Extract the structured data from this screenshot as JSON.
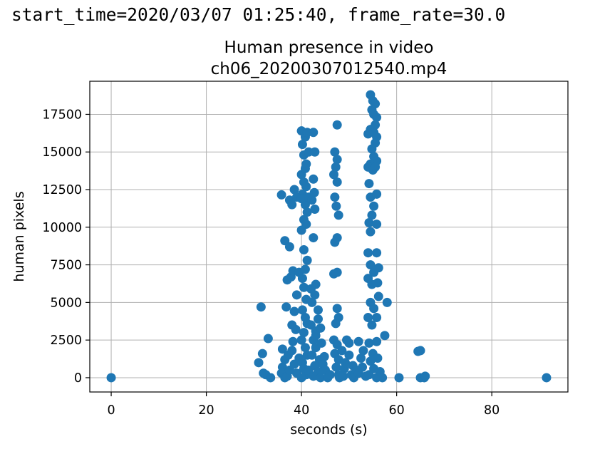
{
  "header": {
    "text": "start_time=2020/03/07 01:25:40, frame_rate=30.0"
  },
  "chart_data": {
    "type": "scatter",
    "title": [
      "Human presence in video",
      "ch06_20200307012540.mp4"
    ],
    "xlabel": "seconds (s)",
    "ylabel": "human pixels",
    "xlim": [
      -4.5,
      96
    ],
    "ylim": [
      -950,
      19700
    ],
    "xticks": [
      0,
      20,
      40,
      60,
      80
    ],
    "yticks": [
      0,
      2500,
      5000,
      7500,
      10000,
      12500,
      15000,
      17500
    ],
    "grid": true,
    "color": "#1f77b4",
    "points": [
      [
        0,
        0
      ],
      [
        91.5,
        0
      ],
      [
        60.5,
        0
      ],
      [
        65,
        0
      ],
      [
        65.8,
        0
      ],
      [
        66,
        100
      ],
      [
        64.5,
        1750
      ],
      [
        65,
        1800
      ],
      [
        31.5,
        4700
      ],
      [
        31,
        1000
      ],
      [
        31.8,
        1600
      ],
      [
        32.5,
        200
      ],
      [
        33,
        2600
      ],
      [
        33.5,
        0
      ],
      [
        32,
        300
      ],
      [
        35.8,
        12150
      ],
      [
        36.5,
        9100
      ],
      [
        37.5,
        8700
      ],
      [
        37,
        6500
      ],
      [
        37.8,
        6700
      ],
      [
        36.8,
        4700
      ],
      [
        38,
        3500
      ],
      [
        38.5,
        4400
      ],
      [
        39,
        5500
      ],
      [
        38.2,
        7100
      ],
      [
        39.5,
        7000
      ],
      [
        37.5,
        11800
      ],
      [
        38.5,
        12500
      ],
      [
        39,
        12000
      ],
      [
        38,
        11500
      ],
      [
        36,
        1900
      ],
      [
        36.5,
        1200
      ],
      [
        36,
        700
      ],
      [
        35.8,
        300
      ],
      [
        36.5,
        0
      ],
      [
        37,
        100
      ],
      [
        37.5,
        500
      ],
      [
        37.2,
        1500
      ],
      [
        38,
        1800
      ],
      [
        38.5,
        900
      ],
      [
        39,
        300
      ],
      [
        39.5,
        1300
      ],
      [
        38.2,
        2400
      ],
      [
        38.8,
        3200
      ],
      [
        40,
        16400
      ],
      [
        40.2,
        15500
      ],
      [
        40.8,
        16000
      ],
      [
        40.5,
        14800
      ],
      [
        41,
        14200
      ],
      [
        40,
        13500
      ],
      [
        40.5,
        13000
      ],
      [
        41,
        12700
      ],
      [
        40.2,
        12200
      ],
      [
        40.8,
        11500
      ],
      [
        41.2,
        11000
      ],
      [
        40.5,
        10500
      ],
      [
        41,
        10200
      ],
      [
        40,
        11900
      ],
      [
        41.5,
        12000
      ],
      [
        40.8,
        13900
      ],
      [
        41.5,
        15000
      ],
      [
        41.2,
        16300
      ],
      [
        40,
        9800
      ],
      [
        40.5,
        8500
      ],
      [
        40.8,
        7200
      ],
      [
        41.2,
        7800
      ],
      [
        40.2,
        6600
      ],
      [
        40.5,
        6000
      ],
      [
        41,
        5200
      ],
      [
        40.2,
        4500
      ],
      [
        40.8,
        4000
      ],
      [
        41.2,
        3600
      ],
      [
        40.5,
        3000
      ],
      [
        40,
        2500
      ],
      [
        40.8,
        2000
      ],
      [
        41.2,
        1500
      ],
      [
        40.2,
        1000
      ],
      [
        40.5,
        600
      ],
      [
        41,
        200
      ],
      [
        40,
        0
      ],
      [
        41.5,
        500
      ],
      [
        42.5,
        16300
      ],
      [
        42.8,
        15000
      ],
      [
        42.5,
        13200
      ],
      [
        42.7,
        12300
      ],
      [
        42.2,
        11800
      ],
      [
        42.8,
        11200
      ],
      [
        42.5,
        9300
      ],
      [
        42,
        5900
      ],
      [
        42.8,
        5500
      ],
      [
        42.2,
        5000
      ],
      [
        43,
        6200
      ],
      [
        43.5,
        4500
      ],
      [
        42,
        3500
      ],
      [
        43,
        3100
      ],
      [
        43.5,
        3900
      ],
      [
        42.5,
        2500
      ],
      [
        43,
        2000
      ],
      [
        42.2,
        1500
      ],
      [
        43.8,
        1200
      ],
      [
        42.8,
        800
      ],
      [
        43.5,
        400
      ],
      [
        42.5,
        100
      ],
      [
        44,
        0
      ],
      [
        43,
        2800
      ],
      [
        44,
        3300
      ],
      [
        44.2,
        2300
      ],
      [
        44.5,
        900
      ],
      [
        45,
        500
      ],
      [
        45.5,
        0
      ],
      [
        46,
        200
      ],
      [
        44.8,
        1400
      ],
      [
        47.5,
        16800
      ],
      [
        47,
        15000
      ],
      [
        47.5,
        14500
      ],
      [
        47.2,
        14000
      ],
      [
        46.8,
        13500
      ],
      [
        47.5,
        13000
      ],
      [
        47,
        12000
      ],
      [
        47.3,
        11400
      ],
      [
        47.8,
        10800
      ],
      [
        47.5,
        9300
      ],
      [
        47,
        9000
      ],
      [
        47.5,
        7000
      ],
      [
        46.8,
        6900
      ],
      [
        47.5,
        4600
      ],
      [
        47.8,
        4000
      ],
      [
        47.2,
        3600
      ],
      [
        46.8,
        2500
      ],
      [
        47.5,
        2200
      ],
      [
        47,
        1600
      ],
      [
        47.8,
        1200
      ],
      [
        47.3,
        700
      ],
      [
        47.8,
        200
      ],
      [
        48,
        0
      ],
      [
        48.5,
        1800
      ],
      [
        49,
        600
      ],
      [
        49.5,
        2500
      ],
      [
        50,
        1500
      ],
      [
        50.5,
        200
      ],
      [
        49.2,
        1000
      ],
      [
        48.8,
        100
      ],
      [
        50.8,
        800
      ],
      [
        50,
        2300
      ],
      [
        51,
        0
      ],
      [
        51.5,
        500
      ],
      [
        52,
        2400
      ],
      [
        52.5,
        1300
      ],
      [
        52,
        300
      ],
      [
        52.8,
        700
      ],
      [
        53,
        1800
      ],
      [
        53.5,
        100
      ],
      [
        54.5,
        18800
      ],
      [
        55,
        18400
      ],
      [
        55.5,
        18200
      ],
      [
        54.8,
        17800
      ],
      [
        55.2,
        17500
      ],
      [
        55.8,
        17300
      ],
      [
        55.5,
        16800
      ],
      [
        54.5,
        16500
      ],
      [
        55.2,
        16300
      ],
      [
        55.8,
        16000
      ],
      [
        54,
        16200
      ],
      [
        55.5,
        15600
      ],
      [
        54.8,
        15200
      ],
      [
        55.2,
        14700
      ],
      [
        55.8,
        14400
      ],
      [
        54.5,
        14200
      ],
      [
        54,
        14000
      ],
      [
        55,
        13800
      ],
      [
        55.5,
        14000
      ],
      [
        54.2,
        12900
      ],
      [
        54.5,
        12000
      ],
      [
        55.8,
        12200
      ],
      [
        55.2,
        11400
      ],
      [
        54.8,
        10800
      ],
      [
        54.2,
        10300
      ],
      [
        55.8,
        10200
      ],
      [
        54.5,
        9700
      ],
      [
        54,
        8300
      ],
      [
        55.8,
        8300
      ],
      [
        54.5,
        7500
      ],
      [
        55.2,
        7000
      ],
      [
        56.2,
        7300
      ],
      [
        54,
        6600
      ],
      [
        54.8,
        6200
      ],
      [
        56,
        6300
      ],
      [
        56.2,
        5400
      ],
      [
        54.5,
        5000
      ],
      [
        55.2,
        4600
      ],
      [
        54,
        4000
      ],
      [
        55.8,
        4000
      ],
      [
        54.8,
        3500
      ],
      [
        54.2,
        2300
      ],
      [
        55.8,
        2400
      ],
      [
        55,
        1600
      ],
      [
        54.5,
        1100
      ],
      [
        56,
        1300
      ],
      [
        55.2,
        600
      ],
      [
        54.2,
        200
      ],
      [
        55.8,
        0
      ],
      [
        58,
        5000
      ],
      [
        57.5,
        2800
      ],
      [
        56.5,
        400
      ],
      [
        57,
        0
      ]
    ]
  }
}
